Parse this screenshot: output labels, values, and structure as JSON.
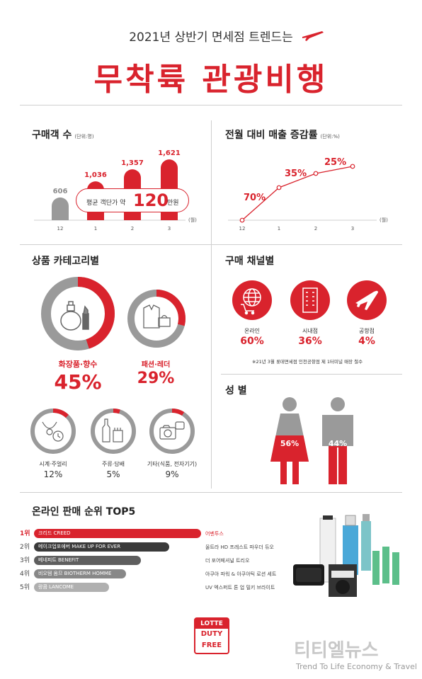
{
  "header": {
    "subtitle": "2021년 상반기 면세점 트렌드는",
    "title": "무착륙 관광비행"
  },
  "buyers": {
    "title": "구매객 수",
    "unit": "(단위:명)",
    "month_unit": "(월)",
    "note_prefix": "평균 객단가 약",
    "note_value": "120",
    "note_suffix": "만원"
  },
  "growth": {
    "title": "전월 대비 매출 증감률",
    "unit": "(단위:%)",
    "month_unit": "(월)"
  },
  "chart_data": [
    {
      "type": "bar",
      "categories": [
        "12",
        "1",
        "2",
        "3"
      ],
      "values": [
        606,
        1036,
        1357,
        1621
      ],
      "labels": [
        "606",
        "1,036",
        "1,357",
        "1,621"
      ],
      "colors": [
        "#9a9a9a",
        "#d9232d",
        "#d9232d",
        "#d9232d"
      ]
    },
    {
      "type": "line",
      "x": [
        "12",
        "1",
        "2",
        "3"
      ],
      "y": [
        0,
        70,
        35,
        25
      ],
      "annotations": [
        "70%",
        "35%",
        "25%"
      ],
      "color": "#d9232d"
    }
  ],
  "category": {
    "title": "상품 카테고리별",
    "items": [
      {
        "label": "화장품·향수",
        "value": "45%",
        "fraction": 0.45,
        "icon": "perfume-lipstick-icon"
      },
      {
        "label": "패션·레더",
        "value": "29%",
        "fraction": 0.29,
        "icon": "jacket-bag-icon"
      },
      {
        "label": "시계·주얼리",
        "value": "12%",
        "fraction": 0.12,
        "icon": "watch-necklace-icon"
      },
      {
        "label": "주류·담배",
        "value": "5%",
        "fraction": 0.05,
        "icon": "bottle-cigarette-icon"
      },
      {
        "label": "기타(식품, 전자기기)",
        "value": "9%",
        "fraction": 0.09,
        "icon": "camera-icon"
      }
    ]
  },
  "channel": {
    "title": "구매 채널별",
    "items": [
      {
        "label": "온라인",
        "value": "60%",
        "icon": "globe-cart-icon"
      },
      {
        "label": "시내점",
        "value": "36%",
        "icon": "building-icon"
      },
      {
        "label": "공항점",
        "value": "4%",
        "icon": "airplane-icon"
      }
    ],
    "footnote": "※21년 3월 롯데면세점 인천공항점 제 1터미널 매장 철수"
  },
  "gender": {
    "title": "성 별",
    "female": "56%",
    "male": "44%",
    "female_fraction": 0.56,
    "male_fraction": 0.44
  },
  "top5": {
    "title": "온라인 판매 순위 TOP5",
    "rows": [
      {
        "rank": "1위",
        "brand": "크리드 CREED",
        "product": "어벤투스",
        "fraction": 1.0,
        "color": "#d9232d"
      },
      {
        "rank": "2위",
        "brand": "메이크업포에버 MAKE UP FOR EVER",
        "product": "울트라 HD 프레스트 파우더 듀오",
        "fraction": 0.81,
        "color": "#3a3a3a"
      },
      {
        "rank": "3위",
        "brand": "베네피트 BENEFIT",
        "product": "더 포어페셔널 트리오",
        "fraction": 0.64,
        "color": "#5e5e5e"
      },
      {
        "rank": "4위",
        "brand": "비오템 옴므 BIOTHERM HOMME",
        "product": "아쿠아 파워 & 아쿠아틱 로션 세트",
        "fraction": 0.55,
        "color": "#888888"
      },
      {
        "rank": "5위",
        "brand": "랑콤 LANCOME",
        "product": "UV 엑스퍼트 톤 업 밀키 브라이트",
        "fraction": 0.45,
        "color": "#b0b0b0"
      }
    ]
  },
  "brand": {
    "line1": "LOTTE",
    "line2": "DUTY",
    "line3": "FREE"
  },
  "watermark": {
    "name": "티티엘뉴스",
    "tagline": "Trend To Life Economy & Travel"
  }
}
